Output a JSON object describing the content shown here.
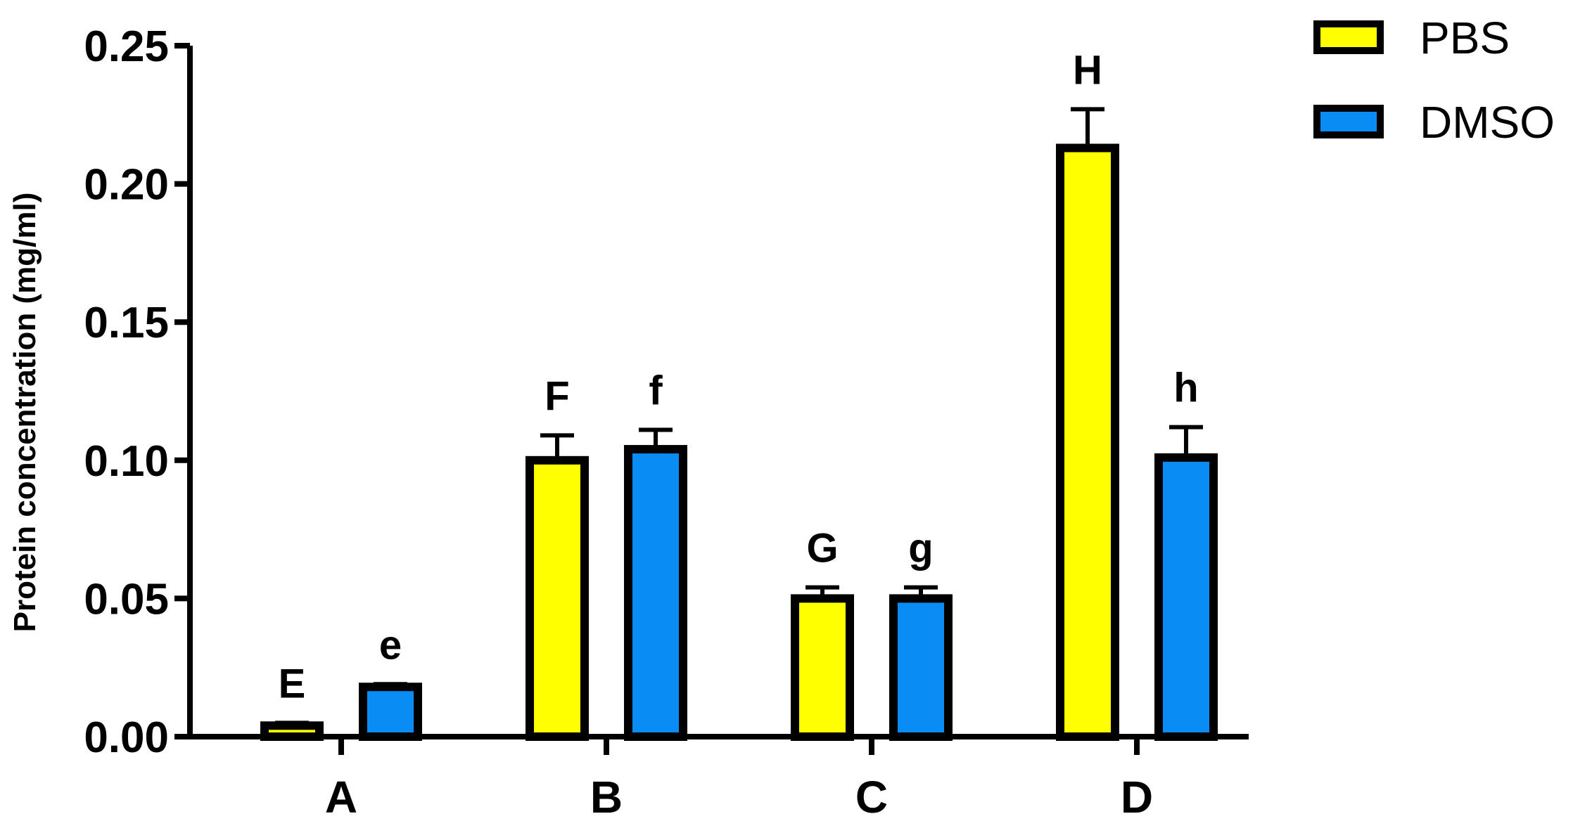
{
  "chart_data": {
    "type": "bar",
    "title": "",
    "xlabel": "",
    "ylabel": "Protein concentration (mg/ml)",
    "ylim": [
      0,
      0.25
    ],
    "yticks": [
      "0.00",
      "0.05",
      "0.10",
      "0.15",
      "0.20",
      "0.25"
    ],
    "ytick_values": [
      0,
      0.05,
      0.1,
      0.15,
      0.2,
      0.25
    ],
    "categories": [
      "A",
      "B",
      "C",
      "D"
    ],
    "series": [
      {
        "name": "PBS",
        "color": "#ffff00",
        "values": [
          0.004,
          0.1,
          0.05,
          0.213
        ],
        "errors": [
          0.001,
          0.009,
          0.004,
          0.014
        ],
        "labels": [
          "E",
          "F",
          "G",
          "H"
        ]
      },
      {
        "name": "DMSO",
        "color": "#0a8cf5",
        "values": [
          0.018,
          0.104,
          0.05,
          0.101
        ],
        "errors": [
          0.001,
          0.007,
          0.004,
          0.011
        ],
        "labels": [
          "e",
          "f",
          "g",
          "h"
        ]
      }
    ],
    "legend_position": "top-right",
    "grid": false
  }
}
